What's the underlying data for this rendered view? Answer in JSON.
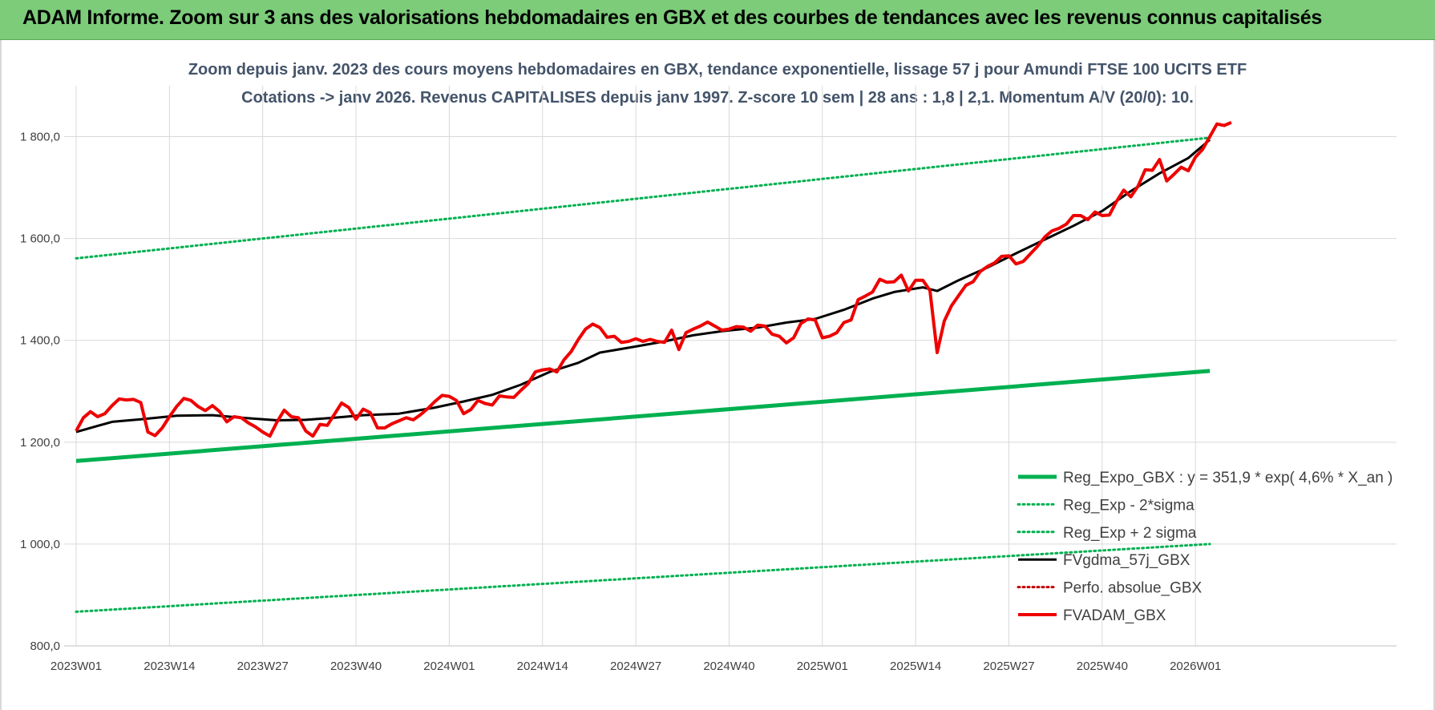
{
  "banner": {
    "title": "ADAM Informe. Zoom sur 3 ans des valorisations hebdomadaires en GBX et des courbes de tendances avec les revenus connus capitalisés"
  },
  "chart_data": {
    "type": "line",
    "title_lines": [
      "Zoom depuis janv. 2023 des cours moyens hebdomadaires en GBX, tendance exponentielle, lissage 57 j pour Amundi FTSE 100 UCITS ETF",
      "Cotations -> janv 2026. Revenus CAPITALISES depuis janv 1997. Z-score 10 sem | 28 ans : 1,8 | 2,1. Momentum A/V (20/0): 10."
    ],
    "xlabel": "",
    "ylabel": "",
    "x_range_weeks": [
      0,
      158
    ],
    "ylim": [
      800,
      1900
    ],
    "y_ticks": [
      800,
      1000,
      1200,
      1400,
      1600,
      1800
    ],
    "y_tick_labels": [
      "800,0",
      "1 000,0",
      "1 200,0",
      "1 400,0",
      "1 600,0",
      "1 800,0"
    ],
    "x_ticks": [
      0,
      13,
      26,
      39,
      52,
      65,
      78,
      91,
      104,
      117,
      130,
      143,
      156
    ],
    "x_tick_labels": [
      "2023W01",
      "2023W14",
      "2023W27",
      "2023W40",
      "2024W01",
      "2024W14",
      "2024W27",
      "2024W40",
      "2025W01",
      "2025W14",
      "2025W27",
      "2025W40",
      "2026W01"
    ],
    "grid": true,
    "legend_position": "bottom-right",
    "series": [
      {
        "name": "Reg_Expo_GBX : y = 351,9 * exp( 4,6% *  X_an )",
        "color": "#00b050",
        "style": "solid-thick",
        "points": [
          [
            0,
            1163
          ],
          [
            158,
            1340
          ]
        ]
      },
      {
        "name": "Reg_Exp - 2*sigma",
        "color": "#00b050",
        "style": "dotted",
        "points": [
          [
            0,
            867
          ],
          [
            158,
            1000
          ]
        ]
      },
      {
        "name": "Reg_Exp + 2 sigma",
        "color": "#00b050",
        "style": "dotted",
        "points": [
          [
            0,
            1561
          ],
          [
            158,
            1798
          ]
        ]
      },
      {
        "name": "FVgdma_57j_GBX",
        "color": "#000000",
        "style": "solid",
        "points": [
          [
            0,
            1220
          ],
          [
            5,
            1240
          ],
          [
            9,
            1245
          ],
          [
            14,
            1252
          ],
          [
            19,
            1253
          ],
          [
            23,
            1248
          ],
          [
            28,
            1243
          ],
          [
            32,
            1244
          ],
          [
            36,
            1248
          ],
          [
            40,
            1253
          ],
          [
            45,
            1256
          ],
          [
            50,
            1268
          ],
          [
            54,
            1280
          ],
          [
            58,
            1293
          ],
          [
            62,
            1313
          ],
          [
            66,
            1338
          ],
          [
            70,
            1356
          ],
          [
            73,
            1376
          ],
          [
            78,
            1388
          ],
          [
            82,
            1398
          ],
          [
            86,
            1410
          ],
          [
            90,
            1418
          ],
          [
            95,
            1425
          ],
          [
            99,
            1435
          ],
          [
            103,
            1442
          ],
          [
            107,
            1460
          ],
          [
            111,
            1482
          ],
          [
            114,
            1495
          ],
          [
            118,
            1504
          ],
          [
            120,
            1497
          ],
          [
            123,
            1518
          ],
          [
            127,
            1543
          ],
          [
            131,
            1571
          ],
          [
            135,
            1598
          ],
          [
            139,
            1625
          ],
          [
            143,
            1654
          ],
          [
            147,
            1693
          ],
          [
            151,
            1728
          ],
          [
            155,
            1758
          ],
          [
            158,
            1794
          ]
        ]
      },
      {
        "name": "Perfo. absolue_GBX",
        "color": "#c00000",
        "style": "dotted",
        "points": []
      },
      {
        "name": "FVADAM_GBX",
        "color": "#ee0000",
        "style": "solid-thick",
        "points": [
          [
            0,
            1222
          ],
          [
            1,
            1248
          ],
          [
            2,
            1260
          ],
          [
            3,
            1250
          ],
          [
            4,
            1256
          ],
          [
            5,
            1272
          ],
          [
            6,
            1285
          ],
          [
            7,
            1283
          ],
          [
            8,
            1284
          ],
          [
            9,
            1278
          ],
          [
            10,
            1220
          ],
          [
            11,
            1213
          ],
          [
            12,
            1228
          ],
          [
            13,
            1250
          ],
          [
            14,
            1270
          ],
          [
            15,
            1286
          ],
          [
            16,
            1282
          ],
          [
            17,
            1270
          ],
          [
            18,
            1262
          ],
          [
            19,
            1272
          ],
          [
            20,
            1260
          ],
          [
            21,
            1240
          ],
          [
            22,
            1250
          ],
          [
            23,
            1248
          ],
          [
            24,
            1238
          ],
          [
            25,
            1230
          ],
          [
            26,
            1220
          ],
          [
            27,
            1212
          ],
          [
            28,
            1240
          ],
          [
            29,
            1263
          ],
          [
            30,
            1250
          ],
          [
            31,
            1248
          ],
          [
            32,
            1222
          ],
          [
            33,
            1212
          ],
          [
            34,
            1235
          ],
          [
            35,
            1233
          ],
          [
            36,
            1255
          ],
          [
            37,
            1277
          ],
          [
            38,
            1268
          ],
          [
            39,
            1245
          ],
          [
            40,
            1265
          ],
          [
            41,
            1258
          ],
          [
            42,
            1228
          ],
          [
            43,
            1228
          ],
          [
            44,
            1236
          ],
          [
            45,
            1242
          ],
          [
            46,
            1248
          ],
          [
            47,
            1244
          ],
          [
            48,
            1254
          ],
          [
            49,
            1266
          ],
          [
            50,
            1280
          ],
          [
            51,
            1292
          ],
          [
            52,
            1290
          ],
          [
            53,
            1282
          ],
          [
            54,
            1256
          ],
          [
            55,
            1264
          ],
          [
            56,
            1282
          ],
          [
            57,
            1276
          ],
          [
            58,
            1273
          ],
          [
            59,
            1291
          ],
          [
            60,
            1289
          ],
          [
            61,
            1288
          ],
          [
            62,
            1302
          ],
          [
            63,
            1315
          ],
          [
            64,
            1338
          ],
          [
            65,
            1342
          ],
          [
            66,
            1344
          ],
          [
            67,
            1338
          ],
          [
            68,
            1362
          ],
          [
            69,
            1378
          ],
          [
            70,
            1402
          ],
          [
            71,
            1422
          ],
          [
            72,
            1432
          ],
          [
            73,
            1425
          ],
          [
            74,
            1406
          ],
          [
            75,
            1408
          ],
          [
            76,
            1396
          ],
          [
            77,
            1398
          ],
          [
            78,
            1403
          ],
          [
            79,
            1398
          ],
          [
            80,
            1402
          ],
          [
            81,
            1398
          ],
          [
            82,
            1396
          ],
          [
            83,
            1420
          ],
          [
            84,
            1382
          ],
          [
            85,
            1415
          ],
          [
            86,
            1422
          ],
          [
            87,
            1428
          ],
          [
            88,
            1436
          ],
          [
            89,
            1428
          ],
          [
            90,
            1420
          ],
          [
            91,
            1422
          ],
          [
            92,
            1427
          ],
          [
            93,
            1426
          ],
          [
            94,
            1418
          ],
          [
            95,
            1430
          ],
          [
            96,
            1428
          ],
          [
            97,
            1412
          ],
          [
            98,
            1408
          ],
          [
            99,
            1395
          ],
          [
            100,
            1405
          ],
          [
            101,
            1433
          ],
          [
            102,
            1442
          ],
          [
            103,
            1440
          ],
          [
            104,
            1405
          ],
          [
            105,
            1408
          ],
          [
            106,
            1415
          ],
          [
            107,
            1435
          ],
          [
            108,
            1440
          ],
          [
            109,
            1480
          ],
          [
            110,
            1487
          ],
          [
            111,
            1495
          ],
          [
            112,
            1520
          ],
          [
            113,
            1514
          ],
          [
            114,
            1515
          ],
          [
            115,
            1528
          ],
          [
            116,
            1497
          ],
          [
            117,
            1518
          ],
          [
            118,
            1518
          ],
          [
            119,
            1498
          ],
          [
            120,
            1376
          ],
          [
            121,
            1438
          ],
          [
            122,
            1468
          ],
          [
            123,
            1488
          ],
          [
            124,
            1508
          ],
          [
            125,
            1515
          ],
          [
            126,
            1535
          ],
          [
            127,
            1545
          ],
          [
            128,
            1552
          ],
          [
            129,
            1565
          ],
          [
            130,
            1566
          ],
          [
            131,
            1550
          ],
          [
            132,
            1555
          ],
          [
            133,
            1570
          ],
          [
            134,
            1585
          ],
          [
            135,
            1603
          ],
          [
            136,
            1615
          ],
          [
            137,
            1620
          ],
          [
            138,
            1628
          ],
          [
            139,
            1645
          ],
          [
            140,
            1645
          ],
          [
            141,
            1637
          ],
          [
            142,
            1652
          ],
          [
            143,
            1645
          ],
          [
            144,
            1646
          ],
          [
            145,
            1673
          ],
          [
            146,
            1695
          ],
          [
            147,
            1682
          ],
          [
            148,
            1703
          ],
          [
            149,
            1735
          ],
          [
            150,
            1734
          ],
          [
            151,
            1755
          ],
          [
            152,
            1713
          ],
          [
            153,
            1726
          ],
          [
            154,
            1740
          ],
          [
            155,
            1733
          ],
          [
            156,
            1760
          ],
          [
            157,
            1775
          ],
          [
            158,
            1800
          ],
          [
            159,
            1825
          ],
          [
            160,
            1822
          ],
          [
            161,
            1828
          ]
        ]
      }
    ]
  }
}
